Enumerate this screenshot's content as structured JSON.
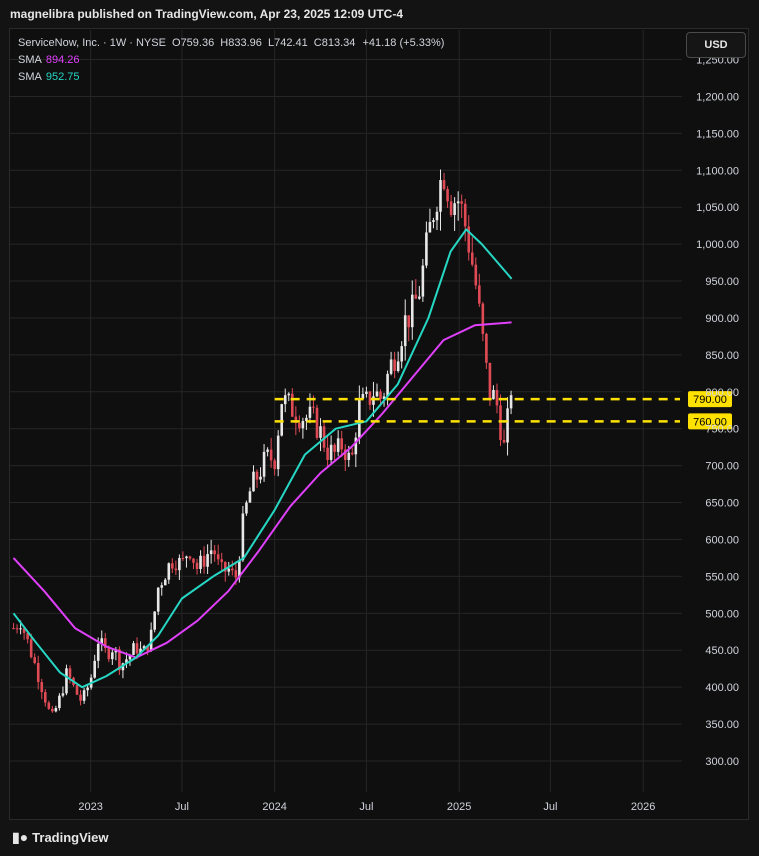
{
  "publish_text": "magnelibra published on TradingView.com, Apr 23, 2025 12:09 UTC-4",
  "currency_button": "USD",
  "legend": {
    "symbol": "ServiceNow, Inc. · 1W · NYSE",
    "open_label": "O",
    "open": "759.36",
    "high_label": "H",
    "high": "833.96",
    "low_label": "L",
    "low": "742.41",
    "close_label": "C",
    "close": "813.34",
    "change": "+41.18 (+5.33%)",
    "sma1_label": "SMA",
    "sma1_value": "894.26",
    "sma2_label": "SMA",
    "sma2_value": "952.75"
  },
  "footer": {
    "brand": "TradingView",
    "logo_icon": "tradingview-logo-icon"
  },
  "colors": {
    "up": "#e8e8e8",
    "down": "#e04a55",
    "sma1": "#e040fb",
    "sma2": "#26d7c4",
    "level": "#ffe100",
    "grid": "#262626",
    "axis_text": "#d1d4dc"
  },
  "chart_data": {
    "type": "candlestick",
    "interval": "1W",
    "title": "ServiceNow, Inc. · 1W · NYSE",
    "ylim": [
      258,
      1290
    ],
    "y_ticks": [
      "300.00",
      "350.00",
      "400.00",
      "450.00",
      "500.00",
      "550.00",
      "600.00",
      "650.00",
      "700.00",
      "750.00",
      "800.00",
      "850.00",
      "900.00",
      "950.00",
      "1,000.00",
      "1,050.00",
      "1,100.00",
      "1,150.00",
      "1,200.00",
      "1,250.00"
    ],
    "y_tick_values": [
      300,
      350,
      400,
      450,
      500,
      550,
      600,
      650,
      700,
      750,
      800,
      850,
      900,
      950,
      1000,
      1050,
      1100,
      1150,
      1200,
      1250
    ],
    "x_ticks": [
      "2023",
      "Jul",
      "2024",
      "Jul",
      "2025",
      "Jul",
      "2026"
    ],
    "x_tick_dates": [
      "2023-01-01",
      "2023-07-01",
      "2024-01-01",
      "2024-07-01",
      "2025-01-01",
      "2025-07-01",
      "2026-01-01"
    ],
    "grid": true,
    "price_levels": [
      {
        "label": "790.00",
        "value": 790,
        "style": "dashed"
      },
      {
        "label": "760.00",
        "value": 760,
        "style": "dashed"
      }
    ],
    "ohlc_points": [
      {
        "date": "2022-08-01",
        "close": 480
      },
      {
        "date": "2022-08-15",
        "close": 490
      },
      {
        "date": "2022-09-01",
        "close": 455
      },
      {
        "date": "2022-09-15",
        "close": 425
      },
      {
        "date": "2022-10-01",
        "close": 390
      },
      {
        "date": "2022-10-15",
        "close": 355
      },
      {
        "date": "2022-11-01",
        "close": 385
      },
      {
        "date": "2022-11-15",
        "close": 420
      },
      {
        "date": "2022-12-01",
        "close": 395
      },
      {
        "date": "2022-12-15",
        "close": 380
      },
      {
        "date": "2023-01-01",
        "close": 410
      },
      {
        "date": "2023-01-15",
        "close": 465
      },
      {
        "date": "2023-02-01",
        "close": 445
      },
      {
        "date": "2023-02-15",
        "close": 455
      },
      {
        "date": "2023-03-01",
        "close": 430
      },
      {
        "date": "2023-03-15",
        "close": 440
      },
      {
        "date": "2023-04-01",
        "close": 455
      },
      {
        "date": "2023-04-15",
        "close": 445
      },
      {
        "date": "2023-05-01",
        "close": 470
      },
      {
        "date": "2023-05-15",
        "close": 535
      },
      {
        "date": "2023-06-01",
        "close": 560
      },
      {
        "date": "2023-06-15",
        "close": 575
      },
      {
        "date": "2023-07-01",
        "close": 565
      },
      {
        "date": "2023-07-15",
        "close": 590
      },
      {
        "date": "2023-08-01",
        "close": 560
      },
      {
        "date": "2023-08-15",
        "close": 575
      },
      {
        "date": "2023-09-01",
        "close": 590
      },
      {
        "date": "2023-09-15",
        "close": 555
      },
      {
        "date": "2023-10-01",
        "close": 560
      },
      {
        "date": "2023-10-15",
        "close": 545
      },
      {
        "date": "2023-11-01",
        "close": 630
      },
      {
        "date": "2023-11-15",
        "close": 670
      },
      {
        "date": "2023-12-01",
        "close": 690
      },
      {
        "date": "2023-12-15",
        "close": 710
      },
      {
        "date": "2024-01-01",
        "close": 710
      },
      {
        "date": "2024-01-15",
        "close": 790
      },
      {
        "date": "2024-02-01",
        "close": 780
      },
      {
        "date": "2024-02-15",
        "close": 770
      },
      {
        "date": "2024-03-01",
        "close": 765
      },
      {
        "date": "2024-03-15",
        "close": 765
      },
      {
        "date": "2024-04-01",
        "close": 745
      },
      {
        "date": "2024-04-15",
        "close": 720
      },
      {
        "date": "2024-05-01",
        "close": 715
      },
      {
        "date": "2024-05-15",
        "close": 730
      },
      {
        "date": "2024-06-01",
        "close": 700
      },
      {
        "date": "2024-06-15",
        "close": 780
      },
      {
        "date": "2024-07-01",
        "close": 785
      },
      {
        "date": "2024-07-15",
        "close": 800
      },
      {
        "date": "2024-08-01",
        "close": 790
      },
      {
        "date": "2024-08-15",
        "close": 830
      },
      {
        "date": "2024-09-01",
        "close": 860
      },
      {
        "date": "2024-09-15",
        "close": 895
      },
      {
        "date": "2024-10-01",
        "close": 910
      },
      {
        "date": "2024-10-15",
        "close": 940
      },
      {
        "date": "2024-11-01",
        "close": 1010
      },
      {
        "date": "2024-11-15",
        "close": 1060
      },
      {
        "date": "2024-12-01",
        "close": 1100
      },
      {
        "date": "2024-12-15",
        "close": 1060
      },
      {
        "date": "2025-01-01",
        "close": 1060
      },
      {
        "date": "2025-01-15",
        "close": 1020
      },
      {
        "date": "2025-02-01",
        "close": 955
      },
      {
        "date": "2025-02-15",
        "close": 880
      },
      {
        "date": "2025-03-01",
        "close": 800
      },
      {
        "date": "2025-03-15",
        "close": 790
      },
      {
        "date": "2025-04-01",
        "close": 720
      },
      {
        "date": "2025-04-15",
        "close": 813
      }
    ],
    "series": [
      {
        "name": "SMA",
        "last_value": 894.26,
        "color": "#e040fb",
        "points": [
          [
            "2022-08-01",
            575
          ],
          [
            "2022-10-01",
            530
          ],
          [
            "2022-12-01",
            480
          ],
          [
            "2023-02-01",
            455
          ],
          [
            "2023-04-01",
            440
          ],
          [
            "2023-06-01",
            460
          ],
          [
            "2023-08-01",
            490
          ],
          [
            "2023-10-01",
            530
          ],
          [
            "2023-12-01",
            585
          ],
          [
            "2024-02-01",
            645
          ],
          [
            "2024-04-01",
            690
          ],
          [
            "2024-06-01",
            725
          ],
          [
            "2024-08-01",
            770
          ],
          [
            "2024-10-01",
            820
          ],
          [
            "2024-12-01",
            870
          ],
          [
            "2025-02-01",
            890
          ],
          [
            "2025-04-15",
            894
          ]
        ]
      },
      {
        "name": "SMA",
        "last_value": 952.75,
        "color": "#26d7c4",
        "points": [
          [
            "2022-08-01",
            500
          ],
          [
            "2022-09-15",
            460
          ],
          [
            "2022-11-01",
            420
          ],
          [
            "2022-12-15",
            400
          ],
          [
            "2023-02-01",
            415
          ],
          [
            "2023-04-01",
            440
          ],
          [
            "2023-05-15",
            470
          ],
          [
            "2023-07-01",
            520
          ],
          [
            "2023-09-01",
            550
          ],
          [
            "2023-11-01",
            575
          ],
          [
            "2024-01-01",
            640
          ],
          [
            "2024-03-01",
            715
          ],
          [
            "2024-05-01",
            750
          ],
          [
            "2024-07-01",
            760
          ],
          [
            "2024-09-01",
            810
          ],
          [
            "2024-11-01",
            900
          ],
          [
            "2024-12-15",
            990
          ],
          [
            "2025-01-15",
            1020
          ],
          [
            "2025-02-15",
            1000
          ],
          [
            "2025-04-15",
            953
          ]
        ]
      }
    ]
  }
}
